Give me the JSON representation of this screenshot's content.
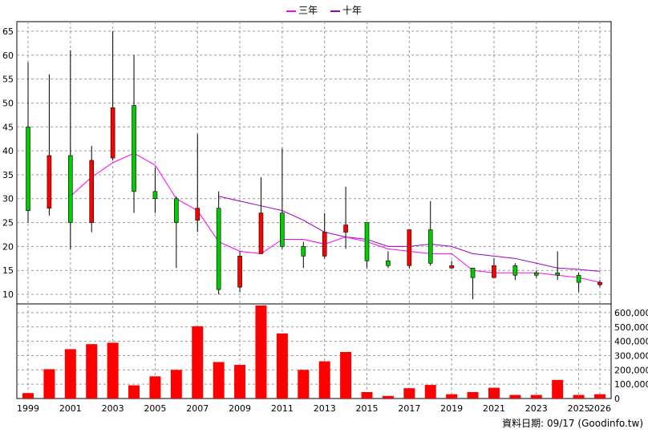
{
  "footer": {
    "date_label": "資料日期: 09/17",
    "source": "(Goodinfo.tw)"
  },
  "colors": {
    "up": "#ff0000",
    "down": "#00cc00",
    "ma3": "#ff00ff",
    "ma10": "#9900cc",
    "volume": "#ff0000",
    "grid": "#999999"
  },
  "chart_data": {
    "type": "candlestick",
    "legend": [
      "三年",
      "十年"
    ],
    "years": [
      1999,
      2000,
      2001,
      2002,
      2003,
      2004,
      2005,
      2006,
      2007,
      2008,
      2009,
      2010,
      2011,
      2012,
      2013,
      2014,
      2015,
      2016,
      2017,
      2018,
      2019,
      2020,
      2021,
      2022,
      2023,
      2024,
      2025,
      2026
    ],
    "x_tick_labels": [
      "1999",
      "2001",
      "2003",
      "2005",
      "2007",
      "2009",
      "2011",
      "2013",
      "2015",
      "2017",
      "2019",
      "2021",
      "2023",
      "2025",
      "2026"
    ],
    "price_axis": {
      "ticks": [
        10,
        15,
        20,
        25,
        30,
        35,
        40,
        45,
        50,
        55,
        60,
        65
      ],
      "ylim": [
        8,
        67
      ]
    },
    "volume_axis": {
      "ticks": [
        "0",
        "100,000",
        "200,000",
        "300,000",
        "400,000",
        "500,000",
        "600,000"
      ],
      "ylim": [
        0,
        650000
      ]
    },
    "candles": [
      {
        "year": 1999,
        "open": 27.5,
        "close": 45,
        "high": 58.5,
        "low": 25
      },
      {
        "year": 2000,
        "open": 39,
        "close": 28,
        "high": 56,
        "low": 26.5
      },
      {
        "year": 2001,
        "open": 25,
        "close": 39,
        "high": 61,
        "low": 19.5
      },
      {
        "year": 2002,
        "open": 38,
        "close": 25,
        "high": 41,
        "low": 23
      },
      {
        "year": 2003,
        "open": 49,
        "close": 38.5,
        "high": 65,
        "low": 38
      },
      {
        "year": 2004,
        "open": 31.5,
        "close": 49.5,
        "high": 60,
        "low": 27
      },
      {
        "year": 2005,
        "open": 30,
        "close": 31.5,
        "high": 36.5,
        "low": 27
      },
      {
        "year": 2006,
        "open": 25,
        "close": 30,
        "high": 30.5,
        "low": 15.5
      },
      {
        "year": 2007,
        "open": 28,
        "close": 25.5,
        "high": 43.5,
        "low": 23
      },
      {
        "year": 2008,
        "open": 11,
        "close": 28,
        "high": 31.5,
        "low": 10
      },
      {
        "year": 2009,
        "open": 18,
        "close": 11.5,
        "high": 19,
        "low": 10.5
      },
      {
        "year": 2010,
        "open": 27,
        "close": 18.5,
        "high": 34.5,
        "low": 18.5
      },
      {
        "year": 2011,
        "open": 20,
        "close": 27,
        "high": 40.5,
        "low": 19.5
      },
      {
        "year": 2012,
        "open": 18,
        "close": 20,
        "high": 21,
        "low": 15.5
      },
      {
        "year": 2013,
        "open": 23,
        "close": 18,
        "high": 27,
        "low": 17.5
      },
      {
        "year": 2014,
        "open": 24.5,
        "close": 23,
        "high": 32.5,
        "low": 19.5
      },
      {
        "year": 2015,
        "open": 17,
        "close": 25,
        "high": 25,
        "low": 15.5
      },
      {
        "year": 2016,
        "open": 16,
        "close": 17,
        "high": 19,
        "low": 15.5
      },
      {
        "year": 2017,
        "open": 23.5,
        "close": 16,
        "high": 23.5,
        "low": 15.5
      },
      {
        "year": 2018,
        "open": 16.5,
        "close": 23.5,
        "high": 29.5,
        "low": 16
      },
      {
        "year": 2019,
        "open": 16,
        "close": 15.5,
        "high": 17,
        "low": 15.5
      },
      {
        "year": 2020,
        "open": 13.5,
        "close": 15.5,
        "high": 15.5,
        "low": 9
      },
      {
        "year": 2021,
        "open": 16,
        "close": 13.5,
        "high": 17.5,
        "low": 13.5
      },
      {
        "year": 2022,
        "open": 14,
        "close": 16,
        "high": 16.5,
        "low": 13
      },
      {
        "year": 2023,
        "open": 14,
        "close": 14.5,
        "high": 15,
        "low": 13.5
      },
      {
        "year": 2024,
        "open": 14,
        "close": 14.5,
        "high": 19,
        "low": 13
      },
      {
        "year": 2025,
        "open": 12.5,
        "close": 14,
        "high": 14.5,
        "low": 10.5
      },
      {
        "year": 2026,
        "open": 12.5,
        "close": 12,
        "high": 13,
        "low": 11.5
      }
    ],
    "ma3": [
      {
        "year": 2001,
        "value": 30.5
      },
      {
        "year": 2002,
        "value": 34.5
      },
      {
        "year": 2003,
        "value": 37.5
      },
      {
        "year": 2004,
        "value": 39.5
      },
      {
        "year": 2005,
        "value": 37
      },
      {
        "year": 2006,
        "value": 30
      },
      {
        "year": 2007,
        "value": 27.5
      },
      {
        "year": 2008,
        "value": 21
      },
      {
        "year": 2009,
        "value": 19
      },
      {
        "year": 2010,
        "value": 18.5
      },
      {
        "year": 2011,
        "value": 21.5
      },
      {
        "year": 2012,
        "value": 21.5
      },
      {
        "year": 2013,
        "value": 20.5
      },
      {
        "year": 2014,
        "value": 22
      },
      {
        "year": 2015,
        "value": 21
      },
      {
        "year": 2016,
        "value": 19.5
      },
      {
        "year": 2017,
        "value": 19
      },
      {
        "year": 2018,
        "value": 18.5
      },
      {
        "year": 2019,
        "value": 18.5
      },
      {
        "year": 2020,
        "value": 15
      },
      {
        "year": 2021,
        "value": 14.5
      },
      {
        "year": 2022,
        "value": 14.5
      },
      {
        "year": 2023,
        "value": 14.5
      },
      {
        "year": 2024,
        "value": 14
      },
      {
        "year": 2025,
        "value": 13.5
      },
      {
        "year": 2026,
        "value": 12.5
      }
    ],
    "ma10": [
      {
        "year": 2008,
        "value": 30.5
      },
      {
        "year": 2009,
        "value": 29.5
      },
      {
        "year": 2010,
        "value": 28.5
      },
      {
        "year": 2011,
        "value": 27.5
      },
      {
        "year": 2012,
        "value": 25.5
      },
      {
        "year": 2013,
        "value": 23
      },
      {
        "year": 2014,
        "value": 22
      },
      {
        "year": 2015,
        "value": 21.5
      },
      {
        "year": 2016,
        "value": 20
      },
      {
        "year": 2017,
        "value": 20
      },
      {
        "year": 2018,
        "value": 20.5
      },
      {
        "year": 2019,
        "value": 20
      },
      {
        "year": 2020,
        "value": 18.5
      },
      {
        "year": 2021,
        "value": 18
      },
      {
        "year": 2022,
        "value": 17.5
      },
      {
        "year": 2023,
        "value": 16.5
      },
      {
        "year": 2024,
        "value": 15.5
      },
      {
        "year": 2025,
        "value": 15.2
      },
      {
        "year": 2026,
        "value": 14.8
      }
    ],
    "volume": [
      {
        "year": 1999,
        "value": 38000
      },
      {
        "year": 2000,
        "value": 205000
      },
      {
        "year": 2001,
        "value": 345000
      },
      {
        "year": 2002,
        "value": 380000
      },
      {
        "year": 2003,
        "value": 390000
      },
      {
        "year": 2004,
        "value": 92000
      },
      {
        "year": 2005,
        "value": 155000
      },
      {
        "year": 2006,
        "value": 200000
      },
      {
        "year": 2007,
        "value": 505000
      },
      {
        "year": 2008,
        "value": 255000
      },
      {
        "year": 2009,
        "value": 235000
      },
      {
        "year": 2010,
        "value": 650000
      },
      {
        "year": 2011,
        "value": 455000
      },
      {
        "year": 2012,
        "value": 200000
      },
      {
        "year": 2013,
        "value": 260000
      },
      {
        "year": 2014,
        "value": 325000
      },
      {
        "year": 2015,
        "value": 45000
      },
      {
        "year": 2016,
        "value": 18000
      },
      {
        "year": 2017,
        "value": 72000
      },
      {
        "year": 2018,
        "value": 95000
      },
      {
        "year": 2019,
        "value": 30000
      },
      {
        "year": 2020,
        "value": 45000
      },
      {
        "year": 2021,
        "value": 75000
      },
      {
        "year": 2022,
        "value": 25000
      },
      {
        "year": 2023,
        "value": 25000
      },
      {
        "year": 2024,
        "value": 130000
      },
      {
        "year": 2025,
        "value": 25000
      },
      {
        "year": 2026,
        "value": 30000
      }
    ]
  }
}
